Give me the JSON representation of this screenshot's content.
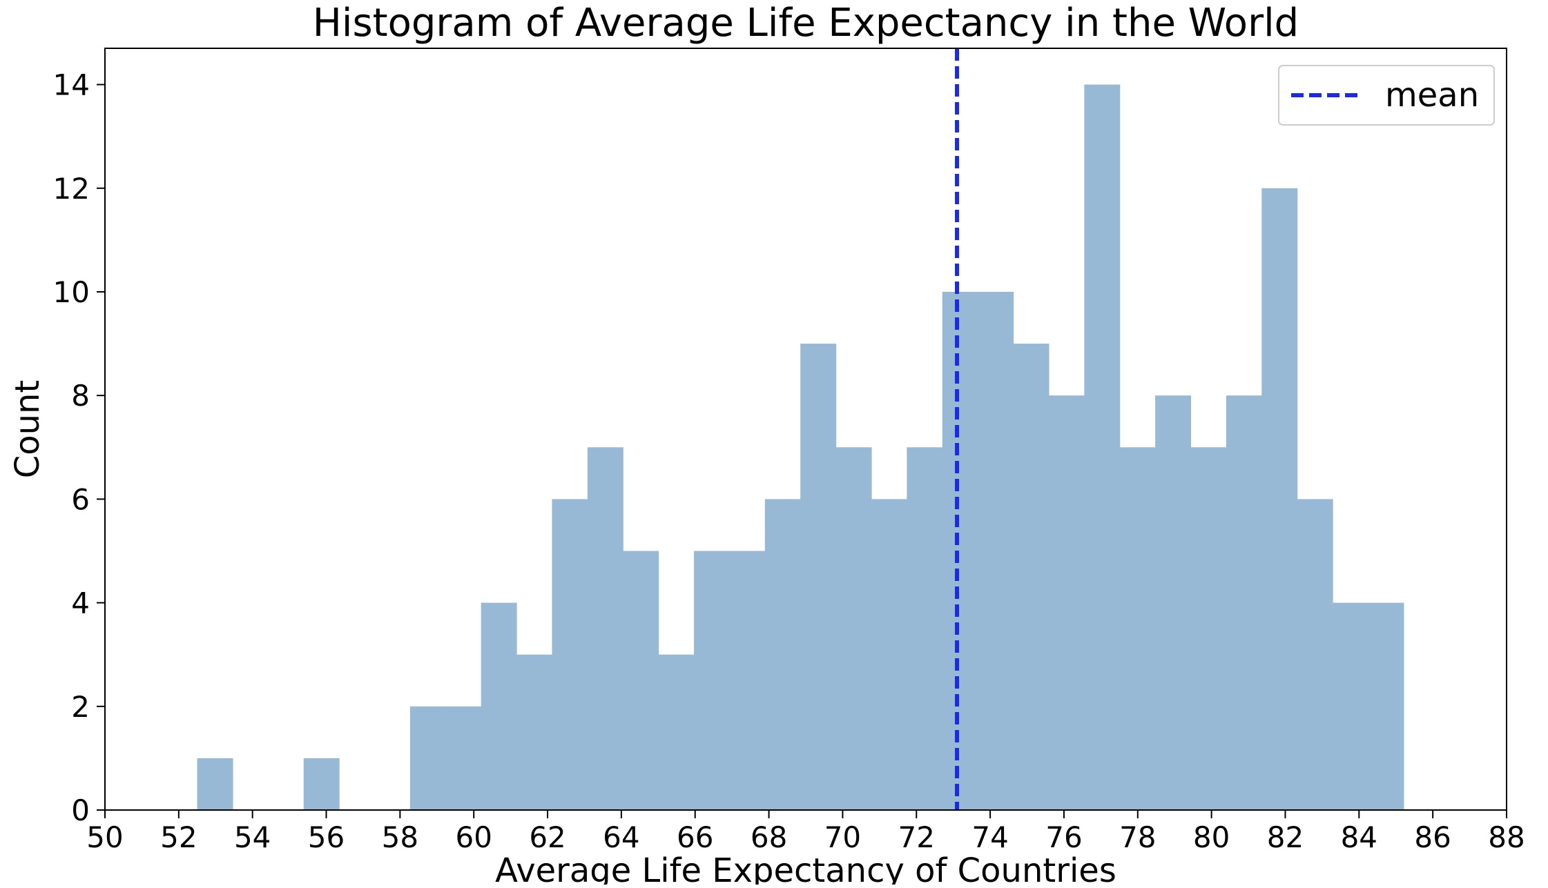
{
  "chart_data": {
    "type": "bar",
    "title": "Histogram of Average Life Expectancy in the World",
    "xlabel": "Average Life Expectancy of Countries",
    "ylabel": "Count",
    "xlim": [
      50,
      88
    ],
    "ylim": [
      0,
      14.7
    ],
    "xticks": [
      50,
      52,
      54,
      56,
      58,
      60,
      62,
      64,
      66,
      68,
      70,
      72,
      74,
      76,
      78,
      80,
      82,
      84,
      86,
      88
    ],
    "yticks": [
      0,
      2,
      4,
      6,
      8,
      10,
      12,
      14
    ],
    "bin_start": 52.5,
    "bin_width": 0.962,
    "counts": [
      1,
      0,
      0,
      1,
      0,
      0,
      2,
      2,
      4,
      3,
      6,
      7,
      5,
      3,
      5,
      5,
      6,
      9,
      7,
      6,
      7,
      10,
      10,
      9,
      8,
      14,
      7,
      8,
      7,
      8,
      12,
      6,
      4,
      4
    ],
    "bar_color": "#98b9d6",
    "mean": 73.1,
    "mean_color": "#1a2ae6",
    "legend": {
      "label": "mean",
      "position": "top-right"
    },
    "grid": false
  }
}
